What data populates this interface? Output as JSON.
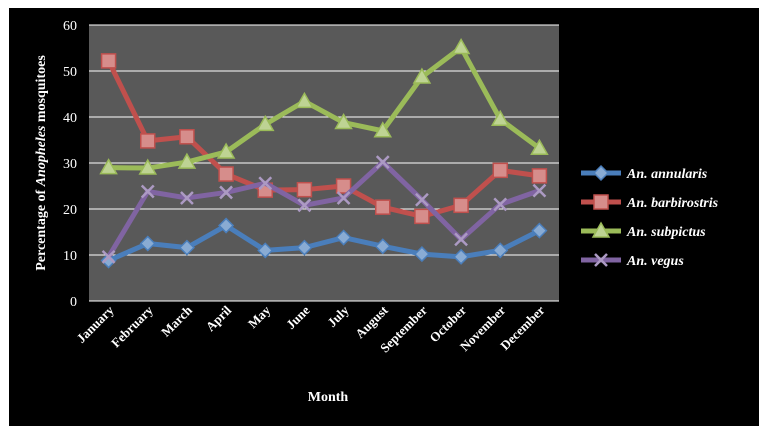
{
  "chart_data": {
    "type": "line",
    "xlabel": "Month",
    "ylabel_prefix": "Percentage of ",
    "ylabel_italic": "Anopheles",
    "ylabel_suffix": " mosquitoes",
    "ylim": [
      0,
      60
    ],
    "yticks": [
      0,
      10,
      20,
      30,
      40,
      50,
      60
    ],
    "grid": true,
    "legend_position": "right",
    "categories": [
      "January",
      "February",
      "March",
      "April",
      "May",
      "June",
      "July",
      "August",
      "September",
      "October",
      "November",
      "December"
    ],
    "series": [
      {
        "name": "An. annularis",
        "color": "#4a7ebb",
        "marker": "diamond",
        "values": [
          8.8,
          12.5,
          11.6,
          16.4,
          11.0,
          11.6,
          13.8,
          11.9,
          10.2,
          9.6,
          11.0,
          15.3
        ]
      },
      {
        "name": "An. barbirostris",
        "color": "#c0504d",
        "marker": "square",
        "values": [
          52.2,
          34.8,
          35.7,
          27.6,
          24.1,
          24.2,
          25.0,
          20.4,
          18.4,
          20.8,
          28.4,
          27.2
        ]
      },
      {
        "name": "An. subpictus",
        "color": "#9bbb59",
        "marker": "triangle",
        "values": [
          29.0,
          28.9,
          30.2,
          32.4,
          38.4,
          43.4,
          38.8,
          37.0,
          48.7,
          55.1,
          39.5,
          33.2
        ]
      },
      {
        "name": "An. vegus",
        "color": "#8064a2",
        "marker": "x",
        "values": [
          9.6,
          23.8,
          22.4,
          23.6,
          25.6,
          20.8,
          22.4,
          30.2,
          22.0,
          13.4,
          21.0,
          24.0
        ]
      }
    ]
  }
}
